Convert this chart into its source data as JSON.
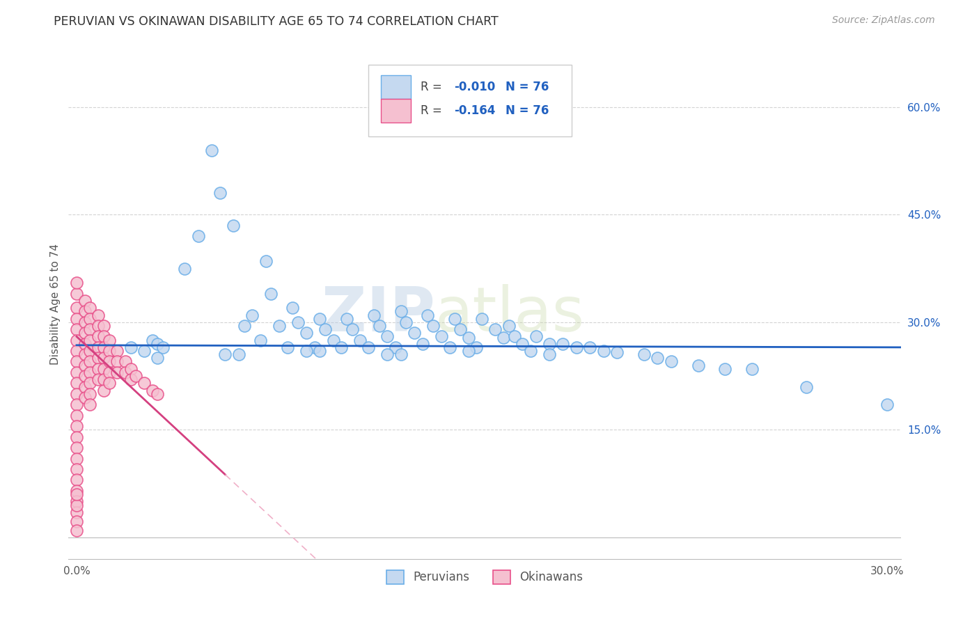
{
  "title": "PERUVIAN VS OKINAWAN DISABILITY AGE 65 TO 74 CORRELATION CHART",
  "ylabel": "Disability Age 65 to 74",
  "source_text": "Source: ZipAtlas.com",
  "watermark": "ZIPatlas",
  "xlim": [
    -0.003,
    0.305
  ],
  "ylim": [
    -0.03,
    0.68
  ],
  "yticks_right": [
    0.15,
    0.3,
    0.45,
    0.6
  ],
  "ytick_labels_right": [
    "15.0%",
    "30.0%",
    "45.0%",
    "60.0%"
  ],
  "legend_R_blue": "-0.010",
  "legend_N_blue": "N = 76",
  "legend_R_pink": "-0.164",
  "legend_N_pink": "N = 76",
  "blue_fill": "#c5d9f0",
  "blue_edge": "#6aaee8",
  "pink_fill": "#f5c0d0",
  "pink_edge": "#e8508a",
  "blue_line_color": "#2060c0",
  "pink_line_color": "#d44080",
  "pink_dash_color": "#f0b0c8",
  "grid_color": "#c8c8c8",
  "background_color": "#ffffff",
  "text_color": "#555555",
  "blue_label_color": "#2060c0",
  "peruvian_x": [
    0.02,
    0.028,
    0.03,
    0.032,
    0.04,
    0.045,
    0.05,
    0.053,
    0.058,
    0.062,
    0.065,
    0.068,
    0.07,
    0.072,
    0.075,
    0.078,
    0.08,
    0.082,
    0.085,
    0.088,
    0.09,
    0.092,
    0.095,
    0.098,
    0.1,
    0.102,
    0.105,
    0.108,
    0.11,
    0.112,
    0.115,
    0.118,
    0.12,
    0.122,
    0.125,
    0.128,
    0.13,
    0.132,
    0.135,
    0.138,
    0.14,
    0.142,
    0.145,
    0.148,
    0.15,
    0.155,
    0.158,
    0.16,
    0.162,
    0.165,
    0.168,
    0.17,
    0.175,
    0.18,
    0.185,
    0.19,
    0.195,
    0.2,
    0.21,
    0.215,
    0.22,
    0.23,
    0.24,
    0.25,
    0.27,
    0.3,
    0.03,
    0.06,
    0.09,
    0.12,
    0.025,
    0.055,
    0.085,
    0.115,
    0.145,
    0.175
  ],
  "peruvian_y": [
    0.265,
    0.275,
    0.27,
    0.265,
    0.375,
    0.42,
    0.54,
    0.48,
    0.435,
    0.295,
    0.31,
    0.275,
    0.385,
    0.34,
    0.295,
    0.265,
    0.32,
    0.3,
    0.285,
    0.265,
    0.305,
    0.29,
    0.275,
    0.265,
    0.305,
    0.29,
    0.275,
    0.265,
    0.31,
    0.295,
    0.28,
    0.265,
    0.315,
    0.3,
    0.285,
    0.27,
    0.31,
    0.295,
    0.28,
    0.265,
    0.305,
    0.29,
    0.278,
    0.265,
    0.305,
    0.29,
    0.278,
    0.295,
    0.28,
    0.27,
    0.26,
    0.28,
    0.27,
    0.27,
    0.265,
    0.265,
    0.26,
    0.258,
    0.255,
    0.25,
    0.245,
    0.24,
    0.235,
    0.235,
    0.21,
    0.185,
    0.25,
    0.255,
    0.26,
    0.255,
    0.26,
    0.255,
    0.26,
    0.255,
    0.26,
    0.255
  ],
  "okinawan_x": [
    0.0,
    0.0,
    0.0,
    0.0,
    0.0,
    0.0,
    0.0,
    0.0,
    0.0,
    0.0,
    0.0,
    0.0,
    0.0,
    0.0,
    0.0,
    0.0,
    0.0,
    0.0,
    0.0,
    0.0,
    0.003,
    0.003,
    0.003,
    0.003,
    0.003,
    0.003,
    0.003,
    0.003,
    0.003,
    0.003,
    0.005,
    0.005,
    0.005,
    0.005,
    0.005,
    0.005,
    0.005,
    0.005,
    0.005,
    0.005,
    0.008,
    0.008,
    0.008,
    0.008,
    0.008,
    0.008,
    0.008,
    0.01,
    0.01,
    0.01,
    0.01,
    0.01,
    0.01,
    0.01,
    0.012,
    0.012,
    0.012,
    0.012,
    0.012,
    0.015,
    0.015,
    0.015,
    0.018,
    0.018,
    0.02,
    0.02,
    0.022,
    0.025,
    0.028,
    0.03,
    0.0,
    0.0,
    0.0,
    0.0,
    0.0,
    0.0
  ],
  "okinawan_y": [
    0.34,
    0.32,
    0.305,
    0.29,
    0.275,
    0.26,
    0.245,
    0.23,
    0.215,
    0.2,
    0.185,
    0.17,
    0.155,
    0.14,
    0.125,
    0.11,
    0.095,
    0.08,
    0.065,
    0.05,
    0.33,
    0.315,
    0.3,
    0.285,
    0.27,
    0.255,
    0.24,
    0.225,
    0.21,
    0.195,
    0.32,
    0.305,
    0.29,
    0.275,
    0.26,
    0.245,
    0.23,
    0.215,
    0.2,
    0.185,
    0.31,
    0.295,
    0.28,
    0.265,
    0.25,
    0.235,
    0.22,
    0.295,
    0.28,
    0.265,
    0.25,
    0.235,
    0.22,
    0.205,
    0.275,
    0.26,
    0.245,
    0.23,
    0.215,
    0.26,
    0.245,
    0.23,
    0.245,
    0.23,
    0.235,
    0.22,
    0.225,
    0.215,
    0.205,
    0.2,
    0.355,
    0.035,
    0.022,
    0.01,
    0.045,
    0.06
  ]
}
